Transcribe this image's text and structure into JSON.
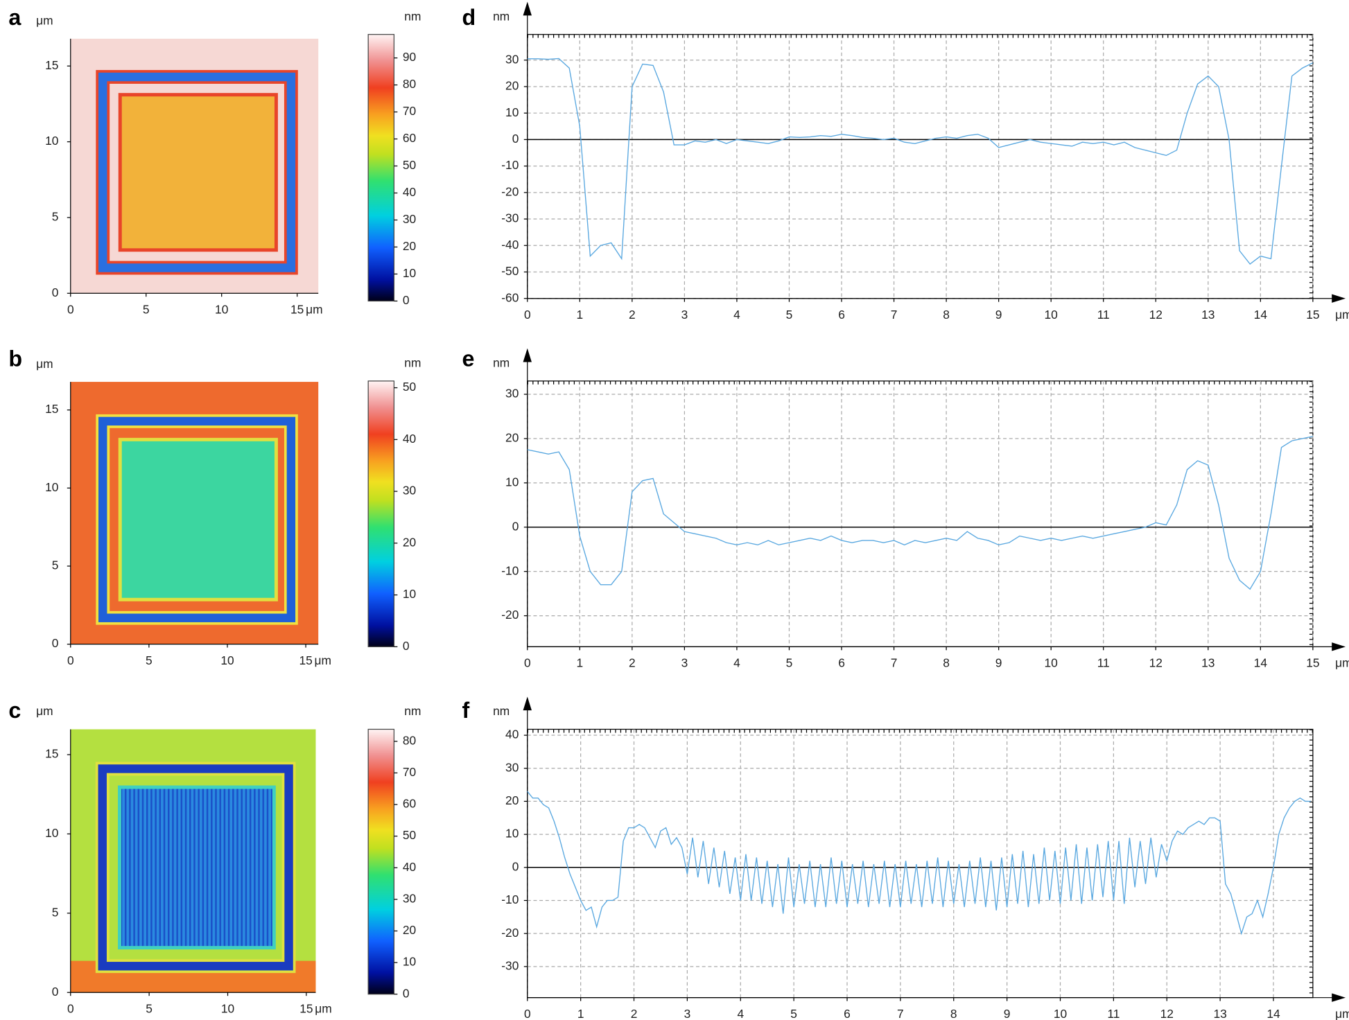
{
  "chart_data": [
    {
      "type": "image",
      "panel_label": "a",
      "x_label": "μm",
      "y_label": "μm",
      "xlim": [
        0,
        16.4
      ],
      "ylim": [
        0,
        16.8
      ],
      "xticks": [
        0,
        5,
        10,
        15
      ],
      "yticks": [
        0,
        5,
        10,
        15
      ],
      "colorbar": {
        "label": "nm",
        "lim": [
          0,
          98.7
        ],
        "ticks": [
          0,
          10,
          20,
          30,
          40,
          50,
          60,
          70,
          80,
          90
        ]
      }
    },
    {
      "type": "image",
      "panel_label": "b",
      "x_label": "μm",
      "y_label": "μm",
      "xlim": [
        0,
        15.8
      ],
      "ylim": [
        0,
        16.8
      ],
      "xticks": [
        0,
        5,
        10,
        15
      ],
      "yticks": [
        0,
        5,
        10,
        15
      ],
      "colorbar": {
        "label": "nm",
        "lim": [
          0,
          51.3
        ],
        "ticks": [
          0,
          10,
          20,
          30,
          40,
          50
        ]
      }
    },
    {
      "type": "image",
      "panel_label": "c",
      "x_label": "μm",
      "y_label": "μm",
      "xlim": [
        0,
        15.6
      ],
      "ylim": [
        0,
        16.6
      ],
      "xticks": [
        0,
        5,
        10,
        15
      ],
      "yticks": [
        0,
        5,
        10,
        15
      ],
      "colorbar": {
        "label": "nm",
        "lim": [
          0,
          83.8
        ],
        "ticks": [
          0,
          10,
          20,
          30,
          40,
          50,
          60,
          70,
          80
        ]
      }
    },
    {
      "type": "line",
      "panel_label": "d",
      "x_label": "μm",
      "y_label": "nm",
      "xlim": [
        0,
        15
      ],
      "ylim": [
        -60,
        39.7
      ],
      "xticks": [
        0,
        1,
        2,
        3,
        4,
        5,
        6,
        7,
        8,
        9,
        10,
        11,
        12,
        13,
        14,
        15
      ],
      "yticks": [
        -60,
        -50,
        -40,
        -30,
        -20,
        -10,
        0,
        10,
        20,
        30
      ],
      "grid": true,
      "series": [
        {
          "color": "#5aa8e0",
          "x": [
            0,
            0.2,
            0.4,
            0.6,
            0.8,
            1,
            1.2,
            1.4,
            1.6,
            1.8,
            2,
            2.2,
            2.4,
            2.6,
            2.8,
            3,
            3.2,
            3.4,
            3.6,
            3.8,
            4,
            4.2,
            4.4,
            4.6,
            4.8,
            5,
            5.2,
            5.4,
            5.6,
            5.8,
            6,
            6.2,
            6.4,
            6.6,
            6.8,
            7,
            7.2,
            7.4,
            7.6,
            7.8,
            8,
            8.2,
            8.4,
            8.6,
            8.8,
            9,
            9.2,
            9.4,
            9.6,
            9.8,
            10,
            10.2,
            10.4,
            10.6,
            10.8,
            11,
            11.2,
            11.4,
            11.6,
            11.8,
            12,
            12.2,
            12.4,
            12.6,
            12.8,
            13,
            13.2,
            13.4,
            13.6,
            13.8,
            14,
            14.2,
            14.4,
            14.6,
            14.8,
            15
          ],
          "values": [
            30.5,
            30.5,
            30.3,
            30.6,
            27,
            5,
            -44,
            -40,
            -39,
            -45,
            20,
            28.5,
            28,
            18,
            -2,
            -2,
            -0.5,
            -1,
            0,
            -1.5,
            0,
            -0.5,
            -1,
            -1.5,
            -0.5,
            1,
            0.8,
            1,
            1.5,
            1.2,
            2,
            1.5,
            0.8,
            0.5,
            0,
            0.5,
            -1,
            -1.5,
            -0.5,
            0.5,
            1,
            0.5,
            1.5,
            2,
            0.5,
            -3,
            -2,
            -1,
            0,
            -1,
            -1.5,
            -2,
            -2.5,
            -1,
            -1.5,
            -1,
            -2,
            -1,
            -3,
            -4,
            -5,
            -6,
            -4,
            10,
            21,
            24,
            20,
            0,
            -42,
            -47,
            -44,
            -45,
            -10,
            24,
            27,
            29
          ]
        }
      ]
    },
    {
      "type": "line",
      "panel_label": "e",
      "x_label": "μm",
      "y_label": "nm",
      "xlim": [
        0,
        15
      ],
      "ylim": [
        -27,
        33
      ],
      "xticks": [
        0,
        1,
        2,
        3,
        4,
        5,
        6,
        7,
        8,
        9,
        10,
        11,
        12,
        13,
        14,
        15
      ],
      "yticks": [
        -20,
        -10,
        0,
        10,
        20,
        30
      ],
      "grid": true,
      "series": [
        {
          "color": "#5aa8e0",
          "x": [
            0,
            0.2,
            0.4,
            0.6,
            0.8,
            1,
            1.2,
            1.4,
            1.6,
            1.8,
            2,
            2.2,
            2.4,
            2.6,
            2.8,
            3,
            3.2,
            3.4,
            3.6,
            3.8,
            4,
            4.2,
            4.4,
            4.6,
            4.8,
            5,
            5.2,
            5.4,
            5.6,
            5.8,
            6,
            6.2,
            6.4,
            6.6,
            6.8,
            7,
            7.2,
            7.4,
            7.6,
            7.8,
            8,
            8.2,
            8.4,
            8.6,
            8.8,
            9,
            9.2,
            9.4,
            9.6,
            9.8,
            10,
            10.2,
            10.4,
            10.6,
            10.8,
            11,
            11.2,
            11.4,
            11.6,
            11.8,
            12,
            12.2,
            12.4,
            12.6,
            12.8,
            13,
            13.2,
            13.4,
            13.6,
            13.8,
            14,
            14.2,
            14.4,
            14.6,
            14.8,
            15
          ],
          "values": [
            17.5,
            17,
            16.5,
            17,
            13,
            -2,
            -10,
            -13,
            -13,
            -10,
            8,
            10.5,
            11,
            3,
            1,
            -1,
            -1.5,
            -2,
            -2.5,
            -3.5,
            -4,
            -3.5,
            -4,
            -3,
            -4,
            -3.5,
            -3,
            -2.5,
            -3,
            -2,
            -3,
            -3.5,
            -3,
            -3,
            -3.5,
            -3,
            -4,
            -3,
            -3.5,
            -3,
            -2.5,
            -3,
            -1,
            -2.5,
            -3,
            -4,
            -3.5,
            -2,
            -2.5,
            -3,
            -2.5,
            -3,
            -2.5,
            -2,
            -2.5,
            -2,
            -1.5,
            -1,
            -0.5,
            0,
            1,
            0.5,
            5,
            13,
            15,
            14,
            5,
            -7,
            -12,
            -14,
            -10,
            3,
            18,
            19.5,
            20,
            20.5
          ]
        }
      ]
    },
    {
      "type": "line",
      "panel_label": "f",
      "x_label": "μm",
      "y_label": "nm",
      "xlim": [
        0,
        14.74
      ],
      "ylim": [
        -39.4,
        41.8
      ],
      "xticks": [
        0,
        1,
        2,
        3,
        4,
        5,
        6,
        7,
        8,
        9,
        10,
        11,
        12,
        13,
        14
      ],
      "yticks": [
        -30,
        -20,
        -10,
        0,
        10,
        20,
        30,
        40
      ],
      "grid": true,
      "series": [
        {
          "color": "#5aa8e0",
          "x": [
            0,
            0.1,
            0.2,
            0.3,
            0.4,
            0.5,
            0.6,
            0.7,
            0.8,
            0.9,
            1,
            1.1,
            1.2,
            1.3,
            1.4,
            1.5,
            1.6,
            1.7,
            1.8,
            1.9,
            2,
            2.1,
            2.2,
            2.3,
            2.4,
            2.5,
            2.6,
            2.7,
            2.8,
            2.9,
            3,
            3.1,
            3.2,
            3.3,
            3.4,
            3.5,
            3.6,
            3.7,
            3.8,
            3.9,
            4,
            4.1,
            4.2,
            4.3,
            4.4,
            4.5,
            4.6,
            4.7,
            4.8,
            4.9,
            5,
            5.1,
            5.2,
            5.3,
            5.4,
            5.5,
            5.6,
            5.7,
            5.8,
            5.9,
            6,
            6.1,
            6.2,
            6.3,
            6.4,
            6.5,
            6.6,
            6.7,
            6.8,
            6.9,
            7,
            7.1,
            7.2,
            7.3,
            7.4,
            7.5,
            7.6,
            7.7,
            7.8,
            7.9,
            8,
            8.1,
            8.2,
            8.3,
            8.4,
            8.5,
            8.6,
            8.7,
            8.8,
            8.9,
            9,
            9.1,
            9.2,
            9.3,
            9.4,
            9.5,
            9.6,
            9.7,
            9.8,
            9.9,
            10,
            10.1,
            10.2,
            10.3,
            10.4,
            10.5,
            10.6,
            10.7,
            10.8,
            10.9,
            11,
            11.1,
            11.2,
            11.3,
            11.4,
            11.5,
            11.6,
            11.7,
            11.8,
            11.9,
            12,
            12.1,
            12.2,
            12.3,
            12.4,
            12.5,
            12.6,
            12.7,
            12.8,
            12.9,
            13,
            13.1,
            13.2,
            13.3,
            13.4,
            13.5,
            13.6,
            13.7,
            13.8,
            13.9,
            14,
            14.1,
            14.2,
            14.3,
            14.4,
            14.5,
            14.6,
            14.7
          ],
          "values": [
            23,
            21,
            21,
            19,
            18,
            14,
            9,
            3,
            -2,
            -6,
            -10,
            -13,
            -12,
            -18,
            -12,
            -10,
            -10,
            -9,
            8,
            12,
            12,
            13,
            12,
            9,
            6,
            11,
            12,
            7,
            9,
            6,
            -2,
            9,
            -3,
            8,
            -5,
            6,
            -6,
            5,
            -8,
            3,
            -10,
            4,
            -10,
            3,
            -11,
            2,
            -12,
            1,
            -14,
            3,
            -12,
            1,
            -11,
            2,
            -12,
            1,
            -12,
            3,
            -11,
            2,
            -12,
            1,
            -11,
            2,
            -12,
            1,
            -11,
            2,
            -12,
            1,
            -12,
            2,
            -11,
            1,
            -12,
            2,
            -11,
            3,
            -12,
            2,
            -11,
            1,
            -12,
            2,
            -11,
            3,
            -12,
            2,
            -13,
            3,
            -12,
            4,
            -11,
            5,
            -12,
            4,
            -11,
            6,
            -10,
            5,
            -11,
            6,
            -10,
            7,
            -11,
            6,
            -10,
            7,
            -9,
            8,
            -10,
            8,
            -11,
            9,
            -6,
            8,
            -5,
            9,
            -3,
            7,
            2,
            8,
            11,
            10,
            12,
            13,
            14,
            13,
            15,
            15,
            14,
            -5,
            -8,
            -14,
            -20,
            -15,
            -14,
            -10,
            -15,
            -8,
            0,
            10,
            15,
            18,
            20,
            21,
            20,
            20
          ]
        }
      ]
    }
  ]
}
